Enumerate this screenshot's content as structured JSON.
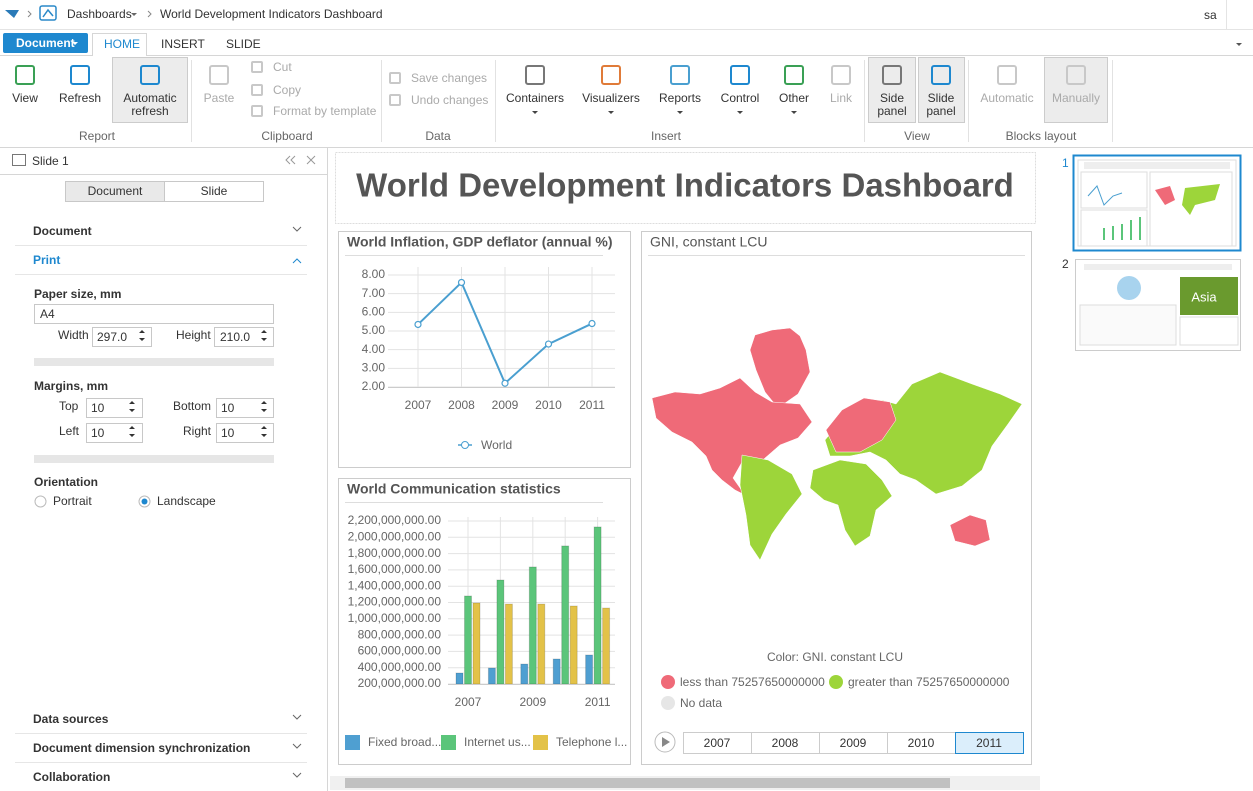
{
  "breadcrumb": {
    "root": "Dashboards",
    "current": "World Development Indicators Dashboard"
  },
  "user": "sa",
  "ribbon": {
    "document_button": "Document",
    "tabs": [
      "HOME",
      "INSERT",
      "SLIDE"
    ],
    "groups": [
      {
        "label": "Report",
        "buttons": [
          "View",
          "Refresh",
          "Automatic refresh"
        ]
      },
      {
        "label": "Clipboard",
        "buttons": [
          "Paste",
          "Cut",
          "Copy",
          "Format by template"
        ]
      },
      {
        "label": "Data",
        "buttons": [
          "Save changes",
          "Undo changes"
        ]
      },
      {
        "label": "Insert",
        "buttons": [
          "Containers",
          "Visualizers",
          "Reports",
          "Control",
          "Other",
          "Link"
        ]
      },
      {
        "label": "View",
        "buttons": [
          "Side panel",
          "Slide panel"
        ]
      },
      {
        "label": "Blocks layout",
        "buttons": [
          "Automatic",
          "Manually"
        ]
      }
    ]
  },
  "side_panel": {
    "title": "Slide 1",
    "tabs": [
      "Document",
      "Slide"
    ],
    "sections": [
      "Document",
      "Print"
    ],
    "print": {
      "paper_size_label": "Paper size, mm",
      "paper_size": "A4",
      "width_label": "Width",
      "width": "297.0",
      "height_label": "Height",
      "height": "210.0",
      "margins_label": "Margins, mm",
      "top_label": "Top",
      "top": "10",
      "bottom_label": "Bottom",
      "bottom": "10",
      "left_label": "Left",
      "left": "10",
      "right_label": "Right",
      "right": "10",
      "orientation_label": "Orientation",
      "portrait": "Portrait",
      "landscape": "Landscape"
    },
    "footer_sections": [
      "Data sources",
      "Document dimension synchronization",
      "Collaboration"
    ]
  },
  "dashboard": {
    "title": "World Development Indicators Dashboard",
    "inflation": {
      "type": "line",
      "title": "World Inflation, GDP deflator (annual %)",
      "categories": [
        "2007",
        "2008",
        "2009",
        "2010",
        "2011"
      ],
      "series": [
        {
          "name": "World",
          "color": "#4a9fd0",
          "values": [
            5.35,
            7.6,
            2.2,
            4.3,
            5.4
          ]
        }
      ],
      "ylim": [
        2,
        8
      ],
      "yticks": [
        {
          "value": 2,
          "label": "2.00"
        },
        {
          "value": 3,
          "label": "3.00"
        },
        {
          "value": 4,
          "label": "4.00"
        },
        {
          "value": 5,
          "label": "5.00"
        },
        {
          "value": 6,
          "label": "6.00"
        },
        {
          "value": 7,
          "label": "7.00"
        },
        {
          "value": 8,
          "label": "8.00"
        }
      ],
      "grid": true
    },
    "communication": {
      "type": "bar",
      "title": "World Communication statistics",
      "categories": [
        "2007",
        "2008",
        "2009",
        "2010",
        "2011"
      ],
      "x_labels": [
        "2007",
        null,
        "2009",
        null,
        "2011"
      ],
      "series": [
        {
          "name": "Fixed broad...",
          "color": "#4f9fd1",
          "values": [
            335000000,
            396000000,
            445000000,
            507000000,
            556000000
          ]
        },
        {
          "name": "Internet us...",
          "color": "#5bc57a",
          "values": [
            1280000000,
            1476000000,
            1636000000,
            1894000000,
            2127000000
          ]
        },
        {
          "name": "Telephone l...",
          "color": "#e3c248",
          "values": [
            1194000000,
            1181000000,
            1181000000,
            1157000000,
            1132000000
          ]
        }
      ],
      "ylim": [
        200000000,
        2200000000
      ],
      "yticks": [
        {
          "value": 200000000,
          "label": "200,000,000.00"
        },
        {
          "value": 400000000,
          "label": "400,000,000.00"
        },
        {
          "value": 600000000,
          "label": "600,000,000.00"
        },
        {
          "value": 800000000,
          "label": "800,000,000.00"
        },
        {
          "value": 1000000000,
          "label": "1,000,000,000.00"
        },
        {
          "value": 1200000000,
          "label": "1,200,000,000.00"
        },
        {
          "value": 1400000000,
          "label": "1,400,000,000.00"
        },
        {
          "value": 1600000000,
          "label": "1,600,000,000.00"
        },
        {
          "value": 1800000000,
          "label": "1,800,000,000.00"
        },
        {
          "value": 2000000000,
          "label": "2,000,000,000.00"
        },
        {
          "value": 2200000000,
          "label": "2,200,000,000.00"
        }
      ],
      "grid": true
    },
    "map": {
      "type": "map",
      "title": "GNI, constant LCU",
      "legend_title": "Color: GNI. constant LCU",
      "legend": [
        {
          "label": "less than 75257650000000",
          "color": "#ef6a78"
        },
        {
          "label": "greater than 75257650000000",
          "color": "#9dd53a"
        },
        {
          "label": "No data",
          "color": "#e6e6e6"
        }
      ],
      "years": [
        "2007",
        "2008",
        "2009",
        "2010",
        "2011"
      ]
    }
  },
  "slides": [
    "1",
    "2"
  ]
}
